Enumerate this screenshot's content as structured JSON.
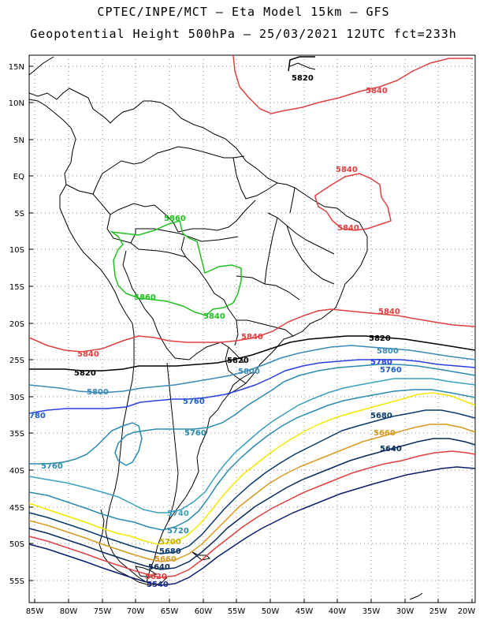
{
  "title_line1": "CPTEC/INPE/MCT –  Eta Model 15km – GFS",
  "title_line2": "Geopotential Height 500hPa – 25/03/2021 12UTC fct=233h",
  "lat_labels": [
    "15N",
    "10N",
    "5N",
    "EQ",
    "5S",
    "10S",
    "15S",
    "20S",
    "25S",
    "30S",
    "35S",
    "40S",
    "45S",
    "50S",
    "55S"
  ],
  "lon_labels": [
    "85W",
    "80W",
    "75W",
    "70W",
    "65W",
    "60W",
    "55W",
    "50W",
    "45W",
    "40W",
    "35W",
    "30W",
    "25W",
    "20W"
  ],
  "colors": {
    "c5500": "#0a1e6e",
    "c5540": "#1c2a8a",
    "c5580": "#2a3a9c",
    "c5620": "#e04040",
    "c5640": "#0a2a5a",
    "c5660": "#d89a20",
    "c5680": "#0a3a6e",
    "c5700": "#f5e800",
    "c5720": "#2a8ab0",
    "c5740": "#3aa0c0",
    "c5760": "#2060c0",
    "c5780": "#2840e0",
    "c5800": "#3a8ab8",
    "c5820": "#000000",
    "c5840": "#e04040",
    "c5860": "#20c020"
  },
  "contour_labels": {
    "l5820a": "5820",
    "l5840a": "5840",
    "l5840b": "5840",
    "l5840c": "5840",
    "l5860a": "5860",
    "l5860b": "5860",
    "l5840d": "5840",
    "l5840e": "5840",
    "l5840f": "5840",
    "l5840g": "5840",
    "l5820b": "5820",
    "l5820c": "5820",
    "l5820d": "5820",
    "l5800a": "5800",
    "l5800b": "5800",
    "l5800c": "5800",
    "l5780a": "5780",
    "l5760a": "5760",
    "l5760b": "5760",
    "l5760c": "5760",
    "l5760d": "5760",
    "l5760e": "5760",
    "l5680a": "5680",
    "l5660a": "5660",
    "l5640a": "5640",
    "l5740a": "5740",
    "l5720a": "5720",
    "l5700a": "5700",
    "l5680b": "5680",
    "l5660b": "5660",
    "l5640b": "5640",
    "l5620a": "5620",
    "l5540a": "5540",
    "l5780b": "780"
  }
}
